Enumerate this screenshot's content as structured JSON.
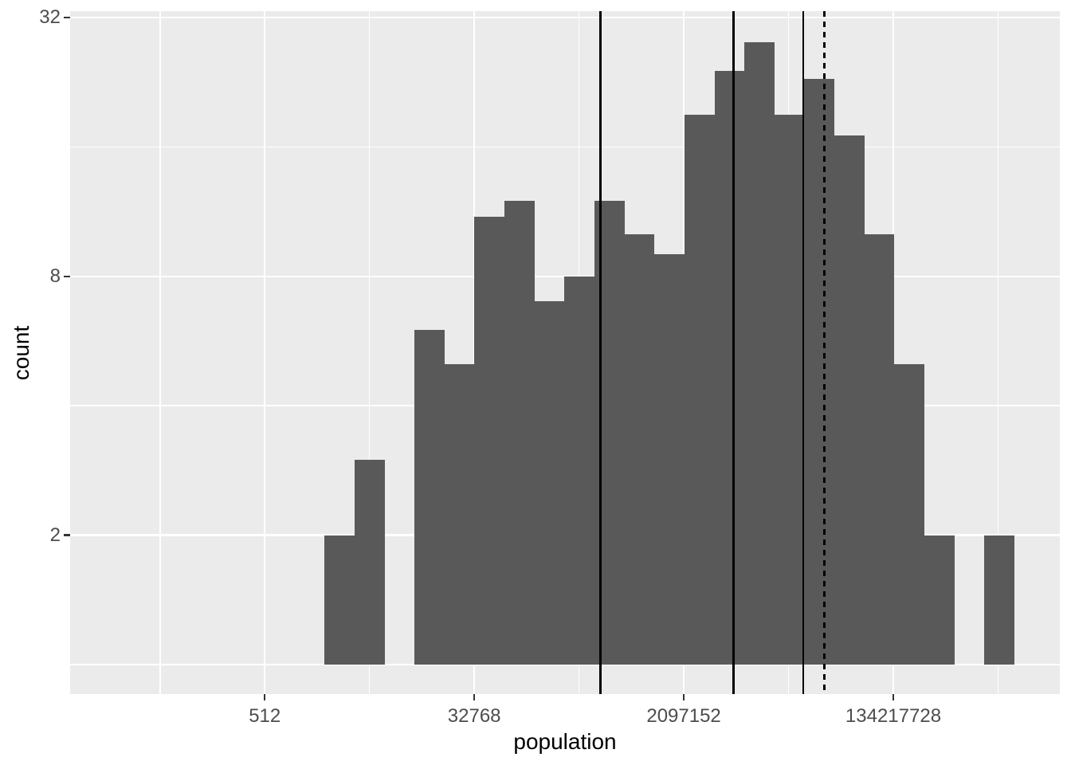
{
  "figure": {
    "background_color": "#FFFFFF",
    "panel_background_color": "#EBEBEB",
    "gridline_color": "#FFFFFF",
    "bar_fill_color": "#595959",
    "vline_color": "#000000",
    "tick_mark_color": "#333333",
    "tick_label_color": "#4D4D4D",
    "axis_title_color": "#000000"
  },
  "axes": {
    "x": {
      "label": "population"
    },
    "y": {
      "label": "count"
    }
  },
  "chart_data": {
    "type": "bar",
    "subtype": "histogram",
    "title": "",
    "xlabel": "population",
    "ylabel": "count",
    "x_scale": "log2",
    "y_scale": "log2",
    "grid": "on",
    "legend": "none",
    "x_domain_log2": [
      3.426,
      31.77
    ],
    "y_domain_log2": [
      -0.228,
      5.049
    ],
    "x_ticks": [
      {
        "label": "512",
        "log2": 9
      },
      {
        "label": "32768",
        "log2": 15
      },
      {
        "label": "2097152",
        "log2": 21
      },
      {
        "label": "134217728",
        "log2": 27
      }
    ],
    "x_minor_log2": [
      6,
      12,
      18,
      24,
      30
    ],
    "y_ticks": [
      {
        "label": "32",
        "log2": 5
      },
      {
        "label": "8",
        "log2": 3
      },
      {
        "label": "2",
        "log2": 1
      }
    ],
    "y_minor_log2": [
      0,
      2,
      4
    ],
    "bars_baseline_count": 1,
    "bin_start_log2": 10.713,
    "bin_width_log2": 0.8588,
    "counts": [
      2,
      3,
      0,
      6,
      5,
      11,
      12,
      7,
      8,
      12,
      10,
      9,
      19,
      24,
      28,
      19,
      23,
      17,
      10,
      5,
      2,
      0,
      2
    ],
    "vlines": [
      {
        "style": "solid",
        "x_log2": 18.617,
        "approx_value": 402000
      },
      {
        "style": "solid",
        "x_log2": 22.431,
        "approx_value": 5660000
      },
      {
        "style": "solid",
        "x_log2": 24.418,
        "approx_value": 22400000
      },
      {
        "style": "dashed",
        "x_log2": 25.023,
        "approx_value": 34100000
      }
    ]
  }
}
